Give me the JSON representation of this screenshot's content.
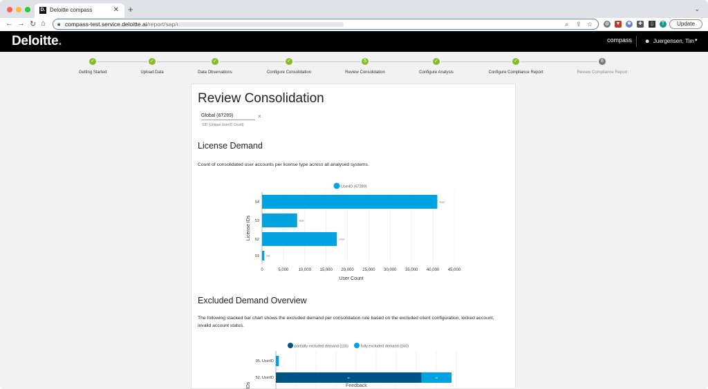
{
  "browser": {
    "tab_title": "Deloitte compass",
    "tab_favicon": "D.",
    "url_host": "compass-test.service.deloitte.ai",
    "url_path": "/report/sap/user",
    "update_label": "Update",
    "profile_initial": "T"
  },
  "header": {
    "logo_text": "Deloitte",
    "logo_dot": ".",
    "product": "compass",
    "user_name": "Juergensen, Tim"
  },
  "steps": [
    {
      "label": "Getting Started",
      "marker": "✓",
      "done": true
    },
    {
      "label": "Upload Data",
      "marker": "✓",
      "done": true
    },
    {
      "label": "Data Observations",
      "marker": "✓",
      "done": true
    },
    {
      "label": "Configure Consolidation",
      "marker": "✓",
      "done": true
    },
    {
      "label": "Review Consolidation",
      "marker": "5",
      "done": true
    },
    {
      "label": "Configure Analysis",
      "marker": "✓",
      "done": true
    },
    {
      "label": "Configure Compliance Report",
      "marker": "✓",
      "done": true
    },
    {
      "label": "Review Compliance Report",
      "marker": "8",
      "done": false
    }
  ],
  "main": {
    "title": "Review Consolidation",
    "filter_value": "Global (67289)",
    "filter_sub": "SID (Unique UserID Count)",
    "license_title": "License Demand",
    "license_text": "Count of consolidated user accounts per license type across all analysed systems.",
    "excluded_title": "Excluded Demand Overview",
    "excluded_text": "The following stacked bar chart shows the excluded demand per consolidation rule based on the excluded client configuration, locked account, invalid account status."
  },
  "footer": {
    "feedback": "Feedback"
  },
  "colors": {
    "accent": "#86bc25",
    "bar_light": "#00a3e0",
    "bar_dark": "#005587"
  },
  "chart_data": [
    {
      "type": "bar",
      "orientation": "horizontal",
      "categories": [
        "54",
        "53",
        "52",
        "91"
      ],
      "series": [
        {
          "name": "UserID (67289)",
          "values": [
            41027,
            8209,
            17507,
            536
          ]
        }
      ],
      "xlabel": "User Count",
      "ylabel": "License IDs",
      "xlim": [
        0,
        45000
      ],
      "xticks": [
        "0",
        "5,000",
        "10,000",
        "15,000",
        "20,000",
        "25,000",
        "30,000",
        "35,000",
        "40,000",
        "45,000"
      ],
      "legend": "top",
      "grid": true
    },
    {
      "type": "bar",
      "orientation": "horizontal",
      "stacked": true,
      "categories": [
        "05, UserID",
        "52, UserID"
      ],
      "series": [
        {
          "name": "partially excluded demand (116)",
          "values": [
            0,
            97
          ]
        },
        {
          "name": "fully excluded demand (160)",
          "values": [
            2,
            20
          ]
        }
      ],
      "ylabel": "IDs",
      "legend": "top",
      "grid": true
    }
  ]
}
